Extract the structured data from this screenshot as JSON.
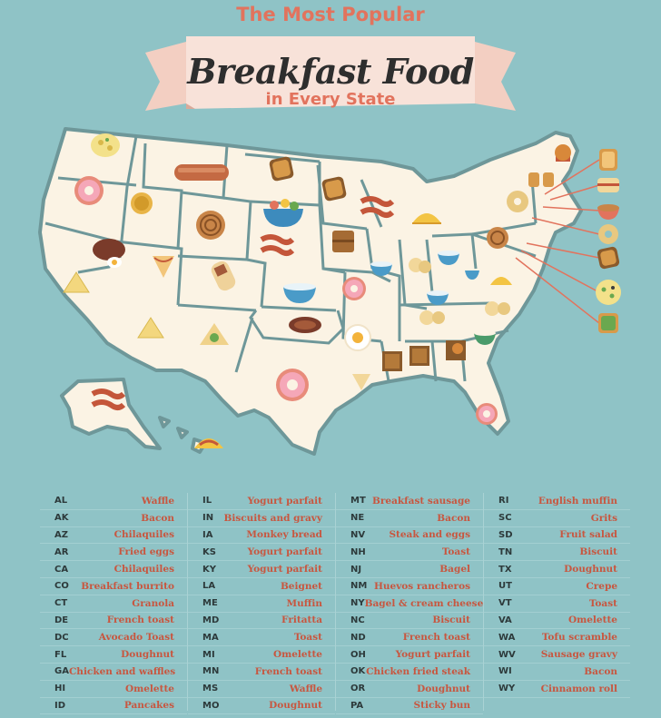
{
  "title": {
    "line1": "The Most Popular",
    "line2": "Breakfast Food",
    "line3": "in Every State"
  },
  "colors": {
    "background": "#8fc3c6",
    "land": "#fbf3e4",
    "border": "#6e9799",
    "title_accent": "#e2735d",
    "ribbon": "#f6d9cf",
    "food_text": "#c8563f"
  },
  "legend": [
    [
      {
        "abbr": "AL",
        "food": "Waffle"
      },
      {
        "abbr": "AK",
        "food": "Bacon"
      },
      {
        "abbr": "AZ",
        "food": "Chilaquiles"
      },
      {
        "abbr": "AR",
        "food": "Fried eggs"
      },
      {
        "abbr": "CA",
        "food": "Chilaquiles"
      },
      {
        "abbr": "CO",
        "food": "Breakfast burrito"
      },
      {
        "abbr": "CT",
        "food": "Granola"
      },
      {
        "abbr": "DE",
        "food": "French toast"
      },
      {
        "abbr": "DC",
        "food": "Avocado Toast"
      },
      {
        "abbr": "FL",
        "food": "Doughnut"
      },
      {
        "abbr": "GA",
        "food": "Chicken and waffles"
      },
      {
        "abbr": "HI",
        "food": "Omelette"
      },
      {
        "abbr": "ID",
        "food": "Pancakes"
      }
    ],
    [
      {
        "abbr": "IL",
        "food": "Yogurt parfait"
      },
      {
        "abbr": "IN",
        "food": "Biscuits and gravy"
      },
      {
        "abbr": "IA",
        "food": "Monkey bread"
      },
      {
        "abbr": "KS",
        "food": "Yogurt parfait"
      },
      {
        "abbr": "KY",
        "food": "Yogurt parfait"
      },
      {
        "abbr": "LA",
        "food": "Beignet"
      },
      {
        "abbr": "ME",
        "food": "Muffin"
      },
      {
        "abbr": "MD",
        "food": "Fritatta"
      },
      {
        "abbr": "MA",
        "food": "Toast"
      },
      {
        "abbr": "MI",
        "food": "Omelette"
      },
      {
        "abbr": "MN",
        "food": "French toast"
      },
      {
        "abbr": "MS",
        "food": "Waffle"
      },
      {
        "abbr": "MO",
        "food": "Doughnut"
      }
    ],
    [
      {
        "abbr": "MT",
        "food": "Breakfast sausage"
      },
      {
        "abbr": "NE",
        "food": "Bacon"
      },
      {
        "abbr": "NV",
        "food": "Steak and eggs"
      },
      {
        "abbr": "NH",
        "food": "Toast"
      },
      {
        "abbr": "NJ",
        "food": "Bagel"
      },
      {
        "abbr": "NM",
        "food": "Huevos rancheros"
      },
      {
        "abbr": "NY",
        "food": "Bagel & cream cheese"
      },
      {
        "abbr": "NC",
        "food": "Biscuit"
      },
      {
        "abbr": "ND",
        "food": "French toast"
      },
      {
        "abbr": "OH",
        "food": "Yogurt parfait"
      },
      {
        "abbr": "OK",
        "food": "Chicken fried steak"
      },
      {
        "abbr": "OR",
        "food": "Doughnut"
      },
      {
        "abbr": "PA",
        "food": "Sticky bun"
      }
    ],
    [
      {
        "abbr": "RI",
        "food": "English muffin"
      },
      {
        "abbr": "SC",
        "food": "Grits"
      },
      {
        "abbr": "SD",
        "food": "Fruit salad"
      },
      {
        "abbr": "TN",
        "food": "Biscuit"
      },
      {
        "abbr": "TX",
        "food": "Doughnut"
      },
      {
        "abbr": "UT",
        "food": "Crepe"
      },
      {
        "abbr": "VT",
        "food": "Toast"
      },
      {
        "abbr": "VA",
        "food": "Omelette"
      },
      {
        "abbr": "WA",
        "food": "Tofu scramble"
      },
      {
        "abbr": "WV",
        "food": "Sausage gravy"
      },
      {
        "abbr": "WI",
        "food": "Bacon"
      },
      {
        "abbr": "WY",
        "food": "Cinnamon roll"
      }
    ]
  ],
  "map_icons": [
    {
      "state": "WA",
      "icon": "tofu-scramble-icon"
    },
    {
      "state": "OR",
      "icon": "doughnut-icon"
    },
    {
      "state": "ID",
      "icon": "pancakes-icon"
    },
    {
      "state": "MT",
      "icon": "sausage-icon"
    },
    {
      "state": "ND",
      "icon": "french-toast-icon"
    },
    {
      "state": "SD",
      "icon": "fruit-salad-icon"
    },
    {
      "state": "WY",
      "icon": "cinnamon-roll-icon"
    },
    {
      "state": "NV",
      "icon": "steak-eggs-icon"
    },
    {
      "state": "CA",
      "icon": "chilaquiles-icon"
    },
    {
      "state": "UT",
      "icon": "crepe-icon"
    },
    {
      "state": "CO",
      "icon": "burrito-icon"
    },
    {
      "state": "NE",
      "icon": "bacon-icon"
    },
    {
      "state": "KS",
      "icon": "yogurt-bowl-icon"
    },
    {
      "state": "AZ",
      "icon": "chilaquiles-icon"
    },
    {
      "state": "NM",
      "icon": "huevos-rancheros-icon"
    },
    {
      "state": "OK",
      "icon": "chicken-fried-steak-icon"
    },
    {
      "state": "TX",
      "icon": "doughnut-icon"
    },
    {
      "state": "MN",
      "icon": "french-toast-icon"
    },
    {
      "state": "IA",
      "icon": "monkey-bread-icon"
    },
    {
      "state": "MO",
      "icon": "doughnut-icon"
    },
    {
      "state": "AR",
      "icon": "fried-egg-icon"
    },
    {
      "state": "LA",
      "icon": "beignet-icon"
    },
    {
      "state": "WI",
      "icon": "bacon-icon"
    },
    {
      "state": "IL",
      "icon": "yogurt-bowl-icon"
    },
    {
      "state": "MI",
      "icon": "omelette-icon"
    },
    {
      "state": "IN",
      "icon": "biscuits-gravy-icon"
    },
    {
      "state": "OH",
      "icon": "yogurt-bowl-icon"
    },
    {
      "state": "KY",
      "icon": "yogurt-bowl-icon"
    },
    {
      "state": "TN",
      "icon": "biscuit-icon"
    },
    {
      "state": "MS",
      "icon": "waffle-icon"
    },
    {
      "state": "AL",
      "icon": "waffle-icon"
    },
    {
      "state": "GA",
      "icon": "chicken-waffles-icon"
    },
    {
      "state": "SC",
      "icon": "grits-icon"
    },
    {
      "state": "NC",
      "icon": "biscuit-icon"
    },
    {
      "state": "VA",
      "icon": "omelette-icon"
    },
    {
      "state": "WV",
      "icon": "sausage-gravy-icon"
    },
    {
      "state": "PA",
      "icon": "sticky-bun-icon"
    },
    {
      "state": "NY",
      "icon": "bagel-icon"
    },
    {
      "state": "FL",
      "icon": "doughnut-icon"
    },
    {
      "state": "AK",
      "icon": "bacon-icon"
    },
    {
      "state": "HI",
      "icon": "omelette-icon"
    },
    {
      "state": "ME",
      "icon": "muffin-icon"
    },
    {
      "state": "VT",
      "icon": "toast-icon"
    },
    {
      "state": "NH",
      "icon": "toast-icon"
    }
  ],
  "callouts": [
    {
      "state": "MA",
      "icon": "toast-icon"
    },
    {
      "state": "RI",
      "icon": "english-muffin-icon"
    },
    {
      "state": "CT",
      "icon": "granola-icon"
    },
    {
      "state": "NJ",
      "icon": "bagel-icon"
    },
    {
      "state": "DE",
      "icon": "french-toast-icon"
    },
    {
      "state": "MD",
      "icon": "frittata-icon"
    },
    {
      "state": "DC",
      "icon": "avocado-toast-icon"
    }
  ]
}
